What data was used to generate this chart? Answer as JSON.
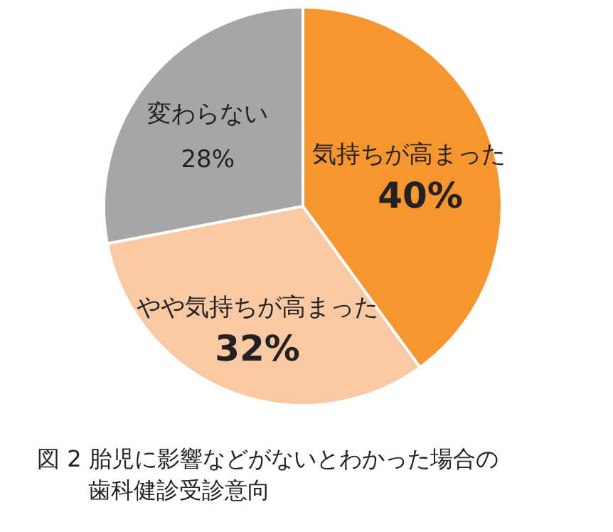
{
  "chart_data": {
    "type": "pie",
    "title": "図 2 胎児に影響などがないとわかった場合の歯科健診受診意向",
    "categories": [
      "気持ちが高まった",
      "やや気持ちが高まった",
      "変わらない"
    ],
    "values": [
      40,
      32,
      28
    ],
    "colors": [
      "#f7962e",
      "#f9c9a4",
      "#a6a6a6"
    ],
    "value_labels": [
      "40%",
      "32%",
      "28%"
    ]
  }
}
